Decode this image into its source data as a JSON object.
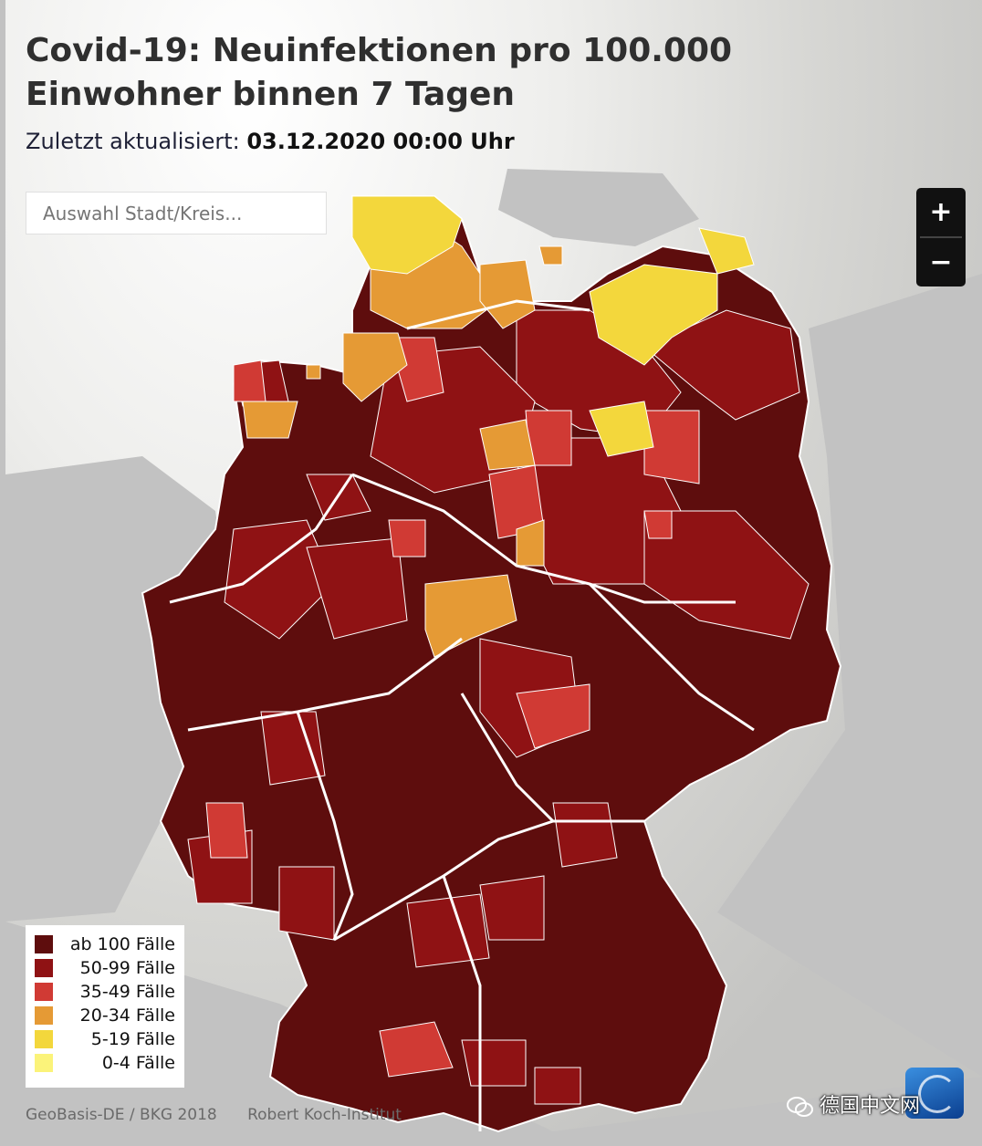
{
  "header": {
    "title": "Covid-19: Neuinfektionen pro 100.000 Einwohner binnen 7 Tagen",
    "updated_label": "Zuletzt aktualisiert:",
    "updated_value": "03.12.2020 00:00 Uhr"
  },
  "search": {
    "placeholder": "Auswahl Stadt/Kreis..."
  },
  "zoom": {
    "in_label": "+",
    "out_label": "−"
  },
  "legend": {
    "items": [
      {
        "label": "ab 100 Fälle",
        "color": "#5e0d0d"
      },
      {
        "label": "50-99 Fälle",
        "color": "#8f1214"
      },
      {
        "label": "35-49 Fälle",
        "color": "#d03a34"
      },
      {
        "label": "20-34 Fälle",
        "color": "#e59a35"
      },
      {
        "label": "5-19 Fälle",
        "color": "#f3d73c"
      },
      {
        "label": "0-4 Fälle",
        "color": "#fbf37a"
      }
    ]
  },
  "credits": {
    "geobasis": "GeoBasis-DE / BKG 2018",
    "rki": "Robert Koch-Institut"
  },
  "watermark": {
    "text": "德国中文网",
    "icon": "wechat-icon"
  },
  "map_colors": {
    "ab100": "#5e0d0d",
    "c50_99": "#8f1214",
    "c35_49": "#d03a34",
    "c20_34": "#e59a35",
    "c5_19": "#f3d73c",
    "land_other": "#c2c2c2",
    "sea": "#dcdcd9",
    "border": "#ffffff"
  }
}
